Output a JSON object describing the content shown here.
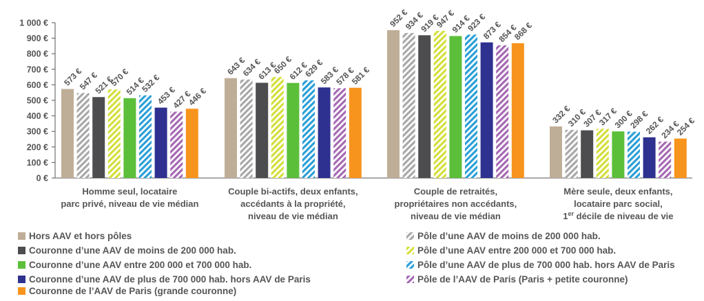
{
  "chart_data": {
    "type": "bar",
    "ylim": [
      0,
      1000
    ],
    "yticks": [
      "0 €",
      "100 €",
      "200 €",
      "300 €",
      "400 €",
      "500 €",
      "600 €",
      "700 €",
      "800 €",
      "900 €",
      "1 000 €"
    ],
    "categories": [
      [
        "Homme seul, locataire",
        "parc privé, niveau de vie médian"
      ],
      [
        "Couple bi-actifs, deux enfants,",
        "accédants à la propriété,",
        "niveau de vie médian"
      ],
      [
        "Couple de retraités,",
        "propriétaires non accédants,",
        "niveau de vie médian"
      ],
      [
        "Mère seule, deux enfants,",
        "locataire parc social,",
        "1er décile de niveau de vie"
      ]
    ],
    "value_suffix": " €",
    "series": [
      {
        "name": "Hors AAV et hors pôles",
        "color": "#bfae97",
        "hatch": false,
        "values": [
          573,
          643,
          952,
          332
        ]
      },
      {
        "name": "Pôle d’une AAV de moins de 200 000 hab.",
        "color": "#a8a8a8",
        "hatch": true,
        "values": [
          547,
          634,
          934,
          310
        ]
      },
      {
        "name": "Couronne d’une AAV de moins de 200 000 hab.",
        "color": "#4d4d4f",
        "hatch": false,
        "values": [
          521,
          613,
          919,
          307
        ]
      },
      {
        "name": "Pôle d’une AAV entre 200 000 et 700 000 hab.",
        "color": "#d4df3a",
        "hatch": true,
        "values": [
          570,
          650,
          947,
          317
        ]
      },
      {
        "name": "Couronne d’une AAV entre 200 000 et 700 000 hab.",
        "color": "#5cbf3a",
        "hatch": false,
        "values": [
          514,
          612,
          914,
          300
        ]
      },
      {
        "name": "Pôle d’une AAV de plus de 700 000 hab. hors AAV de Paris",
        "color": "#2a9fd6",
        "hatch": true,
        "values": [
          532,
          629,
          923,
          298
        ]
      },
      {
        "name": "Couronne d’une AAV de plus de 700 000 hab. hors AAV de Paris",
        "color": "#2e3190",
        "hatch": false,
        "values": [
          453,
          583,
          873,
          262
        ]
      },
      {
        "name": "Pôle de l’AAV de Paris (Paris + petite couronne)",
        "color": "#a569b3",
        "hatch": true,
        "values": [
          427,
          578,
          854,
          234
        ]
      },
      {
        "name": "Couronne de l’AAV de Paris (grande couronne)",
        "color": "#f7941d",
        "hatch": false,
        "values": [
          446,
          581,
          868,
          254
        ]
      }
    ],
    "legend": {
      "left": [
        0,
        2,
        4,
        6,
        8
      ],
      "right": [
        1,
        3,
        5,
        7
      ]
    },
    "grid": false
  }
}
